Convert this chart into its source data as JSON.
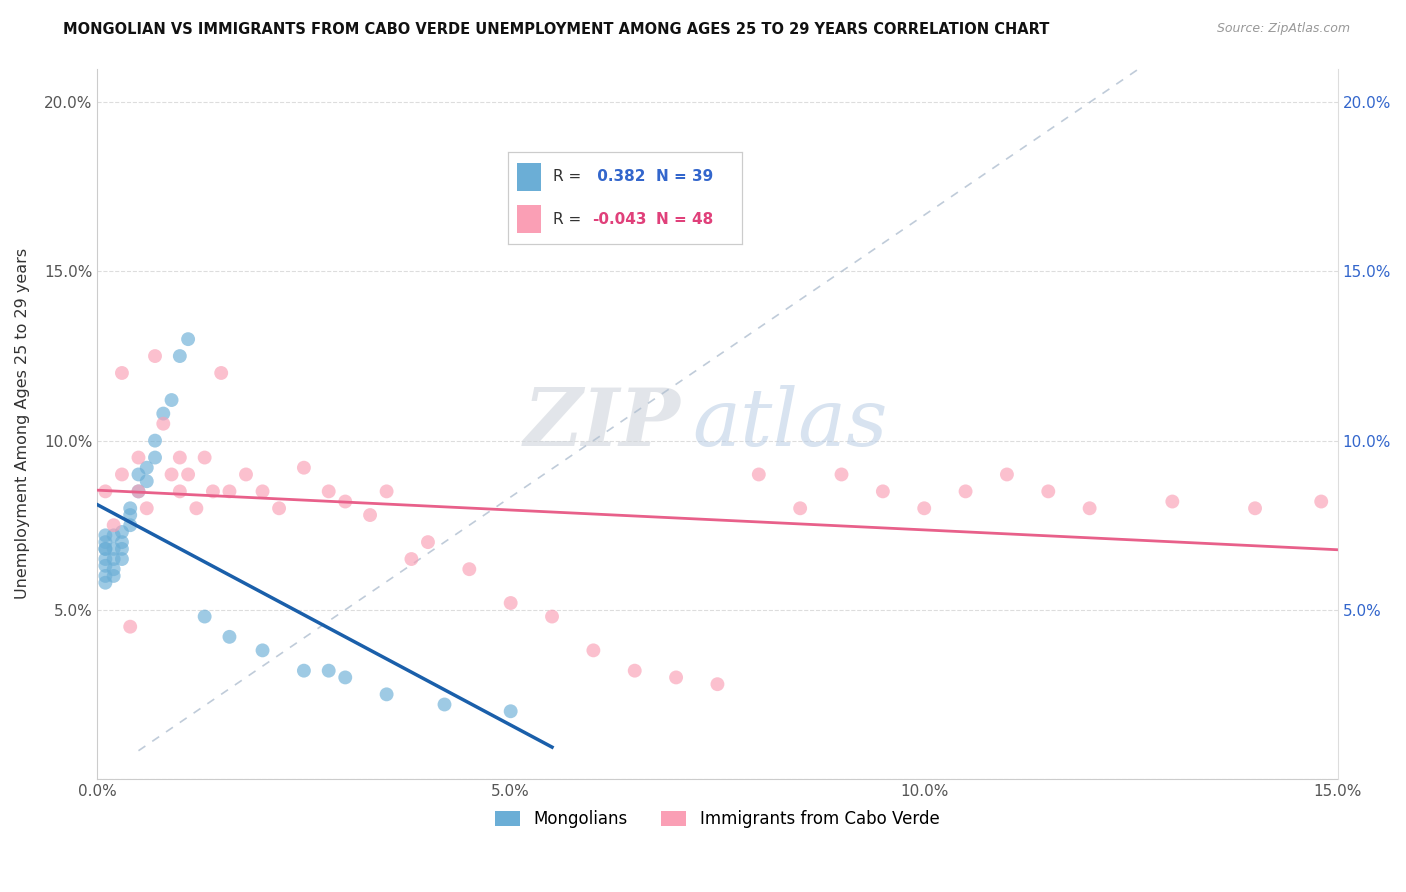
{
  "title": "MONGOLIAN VS IMMIGRANTS FROM CABO VERDE UNEMPLOYMENT AMONG AGES 25 TO 29 YEARS CORRELATION CHART",
  "source": "Source: ZipAtlas.com",
  "ylabel": "Unemployment Among Ages 25 to 29 years",
  "xlim": [
    0.0,
    0.15
  ],
  "ylim": [
    0.0,
    0.21
  ],
  "mongolian_color": "#6baed6",
  "cabo_verde_color": "#fa9fb5",
  "mongolian_R": 0.382,
  "mongolian_N": 39,
  "cabo_verde_R": -0.043,
  "cabo_verde_N": 48,
  "mongolian_line_color": "#1a5faa",
  "cabo_verde_line_color": "#e8608a",
  "diagonal_color": "#b0bfd0",
  "watermark_zip": "ZIP",
  "watermark_atlas": "atlas",
  "mongolian_x": [
    0.001,
    0.001,
    0.001,
    0.001,
    0.001,
    0.001,
    0.001,
    0.001,
    0.002,
    0.002,
    0.002,
    0.002,
    0.002,
    0.003,
    0.003,
    0.003,
    0.003,
    0.004,
    0.004,
    0.004,
    0.005,
    0.005,
    0.006,
    0.006,
    0.007,
    0.007,
    0.008,
    0.009,
    0.01,
    0.011,
    0.013,
    0.016,
    0.02,
    0.025,
    0.028,
    0.03,
    0.035,
    0.042,
    0.05
  ],
  "mongolian_y": [
    0.065,
    0.068,
    0.07,
    0.072,
    0.068,
    0.063,
    0.06,
    0.058,
    0.065,
    0.068,
    0.072,
    0.06,
    0.062,
    0.068,
    0.07,
    0.073,
    0.065,
    0.075,
    0.08,
    0.078,
    0.085,
    0.09,
    0.088,
    0.092,
    0.095,
    0.1,
    0.108,
    0.112,
    0.125,
    0.13,
    0.048,
    0.042,
    0.038,
    0.032,
    0.032,
    0.03,
    0.025,
    0.022,
    0.02
  ],
  "cabo_verde_x": [
    0.001,
    0.002,
    0.003,
    0.003,
    0.004,
    0.005,
    0.005,
    0.006,
    0.007,
    0.008,
    0.009,
    0.01,
    0.01,
    0.011,
    0.012,
    0.013,
    0.014,
    0.015,
    0.016,
    0.018,
    0.02,
    0.022,
    0.025,
    0.028,
    0.03,
    0.033,
    0.035,
    0.038,
    0.04,
    0.045,
    0.05,
    0.055,
    0.06,
    0.065,
    0.07,
    0.075,
    0.08,
    0.085,
    0.09,
    0.095,
    0.1,
    0.105,
    0.11,
    0.115,
    0.12,
    0.13,
    0.14,
    0.148
  ],
  "cabo_verde_y": [
    0.085,
    0.075,
    0.09,
    0.12,
    0.045,
    0.095,
    0.085,
    0.08,
    0.125,
    0.105,
    0.09,
    0.085,
    0.095,
    0.09,
    0.08,
    0.095,
    0.085,
    0.12,
    0.085,
    0.09,
    0.085,
    0.08,
    0.092,
    0.085,
    0.082,
    0.078,
    0.085,
    0.065,
    0.07,
    0.062,
    0.052,
    0.048,
    0.038,
    0.032,
    0.03,
    0.028,
    0.09,
    0.08,
    0.09,
    0.085,
    0.08,
    0.085,
    0.09,
    0.085,
    0.08,
    0.082,
    0.08,
    0.082
  ]
}
